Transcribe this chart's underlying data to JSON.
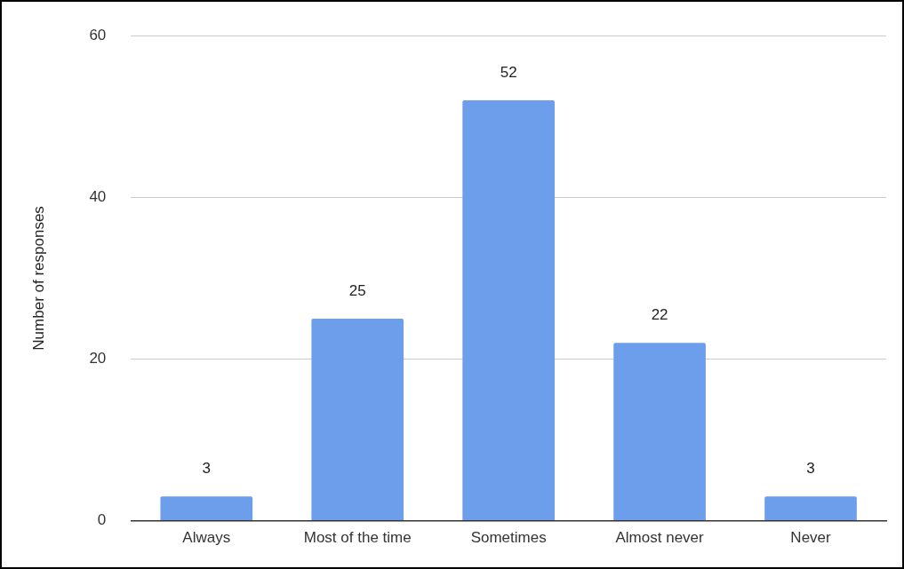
{
  "chart_data": {
    "type": "bar",
    "ylabel": "Number of responses",
    "categories": [
      "Always",
      "Most of the time",
      "Sometimes",
      "Almost never",
      "Never"
    ],
    "values": [
      3,
      25,
      52,
      22,
      3
    ],
    "color": "#6d9eeb",
    "ylim": [
      0,
      60
    ],
    "yticks": [
      0,
      20,
      40,
      60
    ],
    "grid": "y",
    "data_labels": true,
    "legend": false
  }
}
